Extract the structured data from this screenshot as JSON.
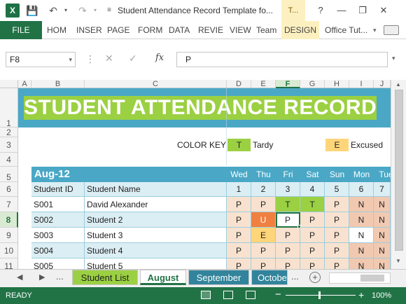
{
  "window": {
    "app_icon": "X",
    "title": "Student Attendance Record Template fo...",
    "context_tab": "T...",
    "controls": [
      "?",
      "—",
      "❐",
      "✕"
    ]
  },
  "ribbon": {
    "file": "FILE",
    "tabs": [
      "HOM",
      "INSER",
      "PAGE",
      "FORM",
      "DATA",
      "REVIE",
      "VIEW",
      "Team",
      "DESIGN"
    ],
    "user": "Office Tut..."
  },
  "formula_bar": {
    "name_box": "F8",
    "fx_label": "fx",
    "value": "P"
  },
  "columns": [
    "A",
    "B",
    "C",
    "D",
    "E",
    "F",
    "G",
    "H",
    "I",
    "J"
  ],
  "rows": [
    "1",
    "2",
    "3",
    "4",
    "5",
    "6",
    "7",
    "8",
    "9",
    "10",
    "11"
  ],
  "sheet": {
    "title": "STUDENT ATTENDANCE RECORD",
    "color_key_label": "COLOR KEY",
    "key": [
      {
        "code": "T",
        "label": "Tardy",
        "color": "#9bd042"
      },
      {
        "code": "E",
        "label": "Excused",
        "color": "#ffd57a"
      }
    ],
    "month": "Aug-12",
    "days": [
      "Wed",
      "Thu",
      "Fri",
      "Sat",
      "Sun",
      "Mon",
      "Tue"
    ],
    "day_numbers": [
      "1",
      "2",
      "3",
      "4",
      "5",
      "6",
      "7"
    ],
    "student_id_header": "Student ID",
    "student_name_header": "Student Name",
    "students": [
      {
        "id": "S001",
        "name": "David Alexander",
        "marks": [
          "P",
          "P",
          "T",
          "T",
          "P",
          "N",
          "N"
        ]
      },
      {
        "id": "S002",
        "name": "Student 2",
        "marks": [
          "P",
          "U",
          "P",
          "P",
          "P",
          "N",
          "N"
        ]
      },
      {
        "id": "S003",
        "name": "Student 3",
        "marks": [
          "P",
          "E",
          "P",
          "P",
          "P",
          "N",
          "N"
        ]
      },
      {
        "id": "S004",
        "name": "Student 4",
        "marks": [
          "P",
          "P",
          "P",
          "P",
          "P",
          "N",
          "N"
        ]
      },
      {
        "id": "S005",
        "name": "Student 5",
        "marks": [
          "P",
          "P",
          "P",
          "P",
          "P",
          "N",
          "N"
        ]
      }
    ]
  },
  "sheet_tabs": {
    "ellipsis_left": "...",
    "tabs": [
      "Student List",
      "August",
      "September",
      "Octobe"
    ],
    "ellipsis_right": "...",
    "active": "August"
  },
  "status": {
    "ready": "READY",
    "zoom": "100%"
  },
  "colors": {
    "accent": "#217346",
    "banner": "#4aa8c6",
    "present": "#f8e2cf",
    "tardy": "#9bd042",
    "excused": "#ffd57a",
    "unexcused": "#f08040",
    "no_school": "#f1c9b1"
  }
}
